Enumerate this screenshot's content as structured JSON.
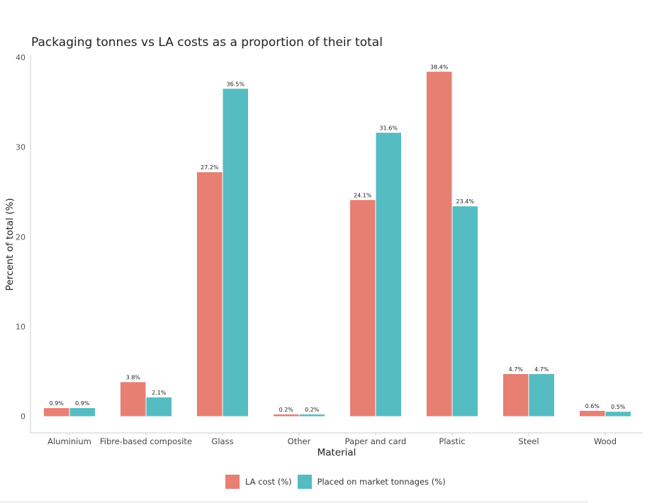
{
  "chart_data": {
    "type": "bar",
    "title": "Packaging tonnes vs LA costs as a proportion of their total",
    "xlabel": "Material",
    "ylabel": "Percent of total (%)",
    "ylim": [
      0,
      40
    ],
    "yticks": [
      0,
      10,
      20,
      30,
      40
    ],
    "grid": false,
    "legend_position": "bottom",
    "categories": [
      "Aluminium",
      "Fibre-based composite",
      "Glass",
      "Other",
      "Paper and card",
      "Plastic",
      "Steel",
      "Wood"
    ],
    "series": [
      {
        "name": "LA cost (%)",
        "color": "#E77F72",
        "values": [
          0.9,
          3.8,
          27.2,
          0.2,
          24.1,
          38.4,
          4.7,
          0.6
        ],
        "labels": [
          "0.9%",
          "3.8%",
          "27.2%",
          "0.2%",
          "24.1%",
          "38.4%",
          "4.7%",
          "0.6%"
        ]
      },
      {
        "name": "Placed on market tonnages (%)",
        "color": "#55BCC2",
        "values": [
          0.9,
          2.1,
          36.5,
          0.2,
          31.6,
          23.4,
          4.7,
          0.5
        ],
        "labels": [
          "0.9%",
          "2.1%",
          "36.5%",
          "0.2%",
          "31.6%",
          "23.4%",
          "4.7%",
          "0.5%"
        ]
      }
    ]
  }
}
